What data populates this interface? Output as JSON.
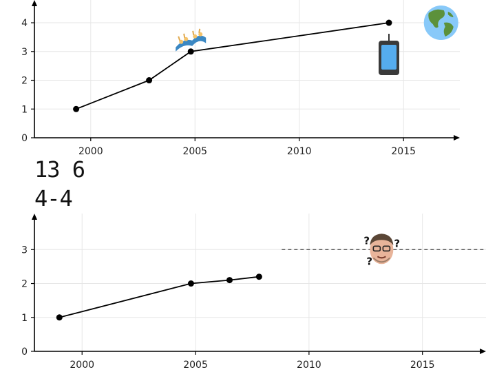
{
  "labels": [
    "13 6",
    "4-4"
  ],
  "chart_data": [
    {
      "type": "line",
      "xlim": [
        1997.3,
        2017.7
      ],
      "ylim": [
        0,
        4.6
      ],
      "x_ticks": [
        "2000",
        "2005",
        "2010",
        "2015"
      ],
      "y_ticks": [
        "0",
        "1",
        "2",
        "3",
        "4"
      ],
      "grid": true,
      "series": [
        {
          "x": [
            1999.3,
            2002.8,
            2004.8,
            2014.3
          ],
          "y": [
            1,
            2,
            3,
            4
          ]
        }
      ],
      "icons": [
        {
          "name": "coaster-icon",
          "x": 2004.8,
          "y": 3
        },
        {
          "name": "phone-icon",
          "x": 2014.3,
          "y": 4
        },
        {
          "name": "globe-icon",
          "x": 2016.8,
          "y": 4
        }
      ],
      "colors": {
        "line": "#000000",
        "grid": "#e6e6e6"
      }
    },
    {
      "type": "line",
      "xlim": [
        1997.9,
        2017.8
      ],
      "ylim": [
        0,
        3.9
      ],
      "x_ticks": [
        "2000",
        "2005",
        "2010",
        "2015"
      ],
      "y_ticks": [
        "0",
        "1",
        "2",
        "3"
      ],
      "grid": true,
      "series": [
        {
          "x": [
            1999.0,
            2004.8,
            2006.5,
            2007.8
          ],
          "y": [
            1,
            2,
            2.1,
            2.2
          ]
        }
      ],
      "reference_line": {
        "y": 3,
        "x_from": 2008.8,
        "x_to": 2017.8,
        "style": "dashed"
      },
      "icons": [
        {
          "name": "confused-face-icon",
          "x": 2013.2,
          "y": 3
        }
      ],
      "colors": {
        "line": "#000000",
        "grid": "#e6e6e6",
        "reference": "#555555"
      }
    }
  ]
}
